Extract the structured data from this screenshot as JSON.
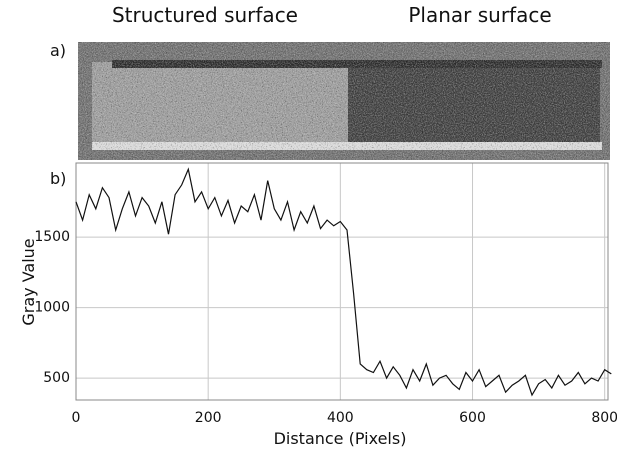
{
  "chart_data": {
    "type": "line",
    "image_labels": [
      "Structured surface",
      "Planar surface"
    ],
    "panel_labels": [
      "a)",
      "b)"
    ],
    "xlabel": "Distance (Pixels)",
    "ylabel": "Gray Value",
    "color": "#111111",
    "grid": true,
    "xlim": [
      0,
      805
    ],
    "xticks": [
      0,
      200,
      400,
      600,
      800
    ],
    "ylim": [
      345,
      2025
    ],
    "yticks": [
      500,
      1000,
      1500
    ],
    "x": [
      0,
      10,
      20,
      30,
      40,
      50,
      60,
      70,
      80,
      90,
      100,
      110,
      120,
      130,
      140,
      150,
      160,
      170,
      180,
      190,
      200,
      210,
      220,
      230,
      240,
      250,
      260,
      270,
      280,
      290,
      300,
      310,
      320,
      330,
      340,
      350,
      360,
      370,
      380,
      390,
      400,
      410,
      420,
      430,
      440,
      450,
      460,
      470,
      480,
      490,
      500,
      510,
      520,
      530,
      540,
      550,
      560,
      570,
      580,
      590,
      600,
      610,
      620,
      630,
      640,
      650,
      660,
      670,
      680,
      690,
      700,
      710,
      720,
      730,
      740,
      750,
      760,
      770,
      780,
      790,
      800,
      810
    ],
    "values": [
      1750,
      1620,
      1800,
      1700,
      1850,
      1780,
      1550,
      1700,
      1820,
      1650,
      1780,
      1720,
      1600,
      1750,
      1520,
      1800,
      1870,
      1980,
      1750,
      1820,
      1700,
      1780,
      1650,
      1760,
      1600,
      1720,
      1680,
      1800,
      1620,
      1900,
      1700,
      1620,
      1750,
      1550,
      1680,
      1600,
      1720,
      1560,
      1620,
      1580,
      1610,
      1550,
      1100,
      600,
      560,
      540,
      620,
      500,
      580,
      520,
      430,
      560,
      480,
      600,
      450,
      500,
      520,
      460,
      420,
      540,
      480,
      560,
      440,
      480,
      520,
      400,
      450,
      480,
      520,
      380,
      460,
      490,
      430,
      520,
      450,
      480,
      540,
      460,
      500,
      480,
      560,
      530
    ]
  }
}
